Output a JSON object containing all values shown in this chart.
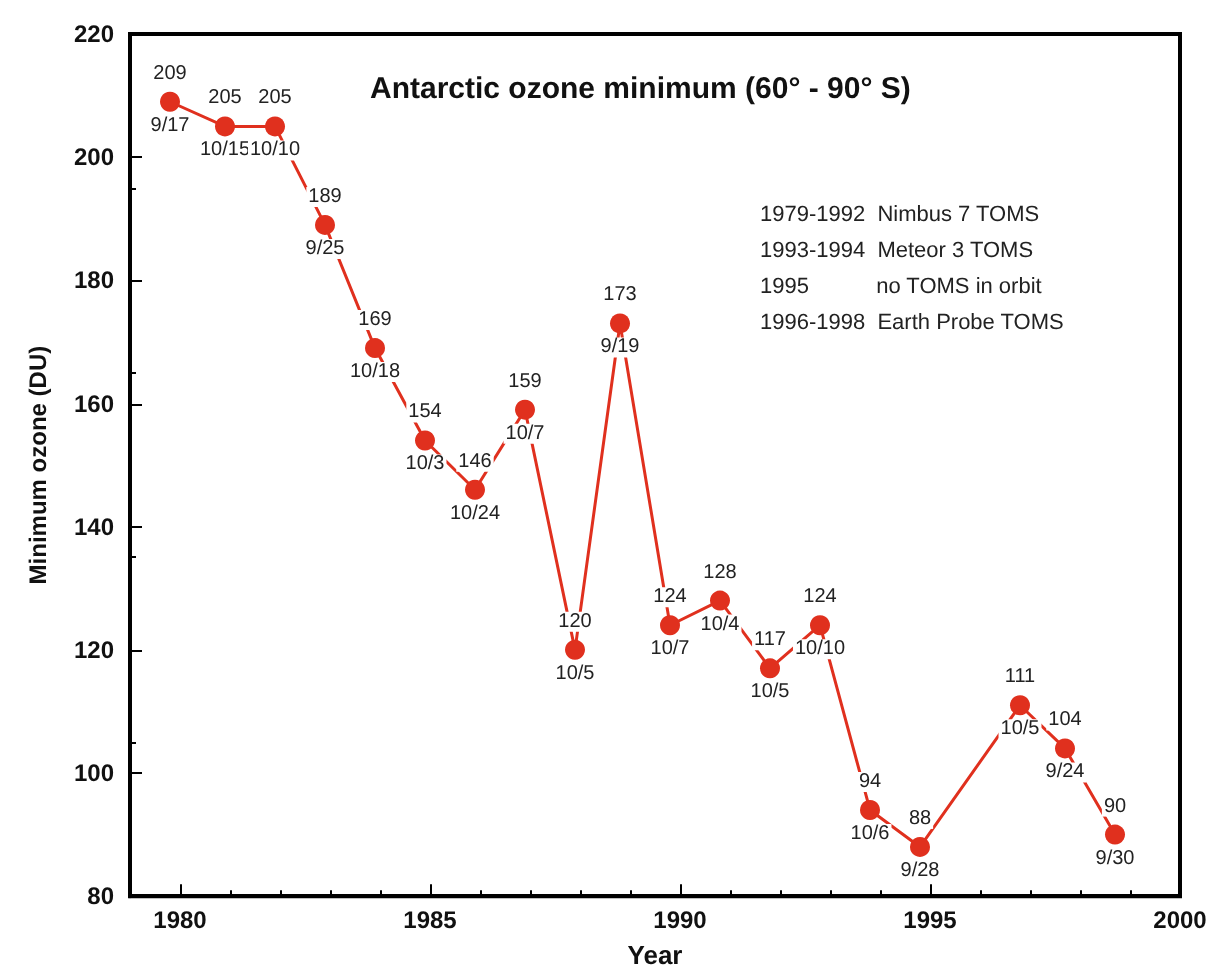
{
  "chart_data": {
    "type": "line",
    "title": "Antarctic ozone minimum (60° - 90° S)",
    "xlabel": "Year",
    "ylabel": "Minimum ozone (DU)",
    "x": [
      1979.8,
      1980.9,
      1981.9,
      1982.9,
      1983.9,
      1984.9,
      1985.9,
      1986.9,
      1987.9,
      1988.8,
      1989.8,
      1990.8,
      1991.8,
      1992.8,
      1993.8,
      1994.8,
      1996.8,
      1997.7,
      1998.7
    ],
    "series": [
      {
        "color": "#e0301e",
        "values": [
          209,
          205,
          205,
          189,
          169,
          154,
          146,
          159,
          120,
          173,
          124,
          128,
          117,
          124,
          94,
          88,
          111,
          104,
          90
        ]
      }
    ],
    "data_labels": true,
    "marker": "circle",
    "line_style": "solid",
    "grid": false,
    "xlim": [
      1979,
      2000
    ],
    "xticks": [
      1980,
      1985,
      1990,
      1995,
      2000
    ],
    "ylim": [
      80,
      220
    ],
    "yticks": [
      80,
      100,
      120,
      140,
      160,
      180,
      200,
      220
    ],
    "annotations": [
      "1979-1992  Nimbus 7 TOMS",
      "1993-1994  Meteor 3 TOMS",
      "1995           no TOMS in orbit",
      "1996-1998  Earth Probe TOMS",
      {
        "text": "9/17",
        "x": 1979.8,
        "y": 209
      },
      {
        "text": "10/15",
        "x": 1980.9,
        "y": 205
      },
      {
        "text": "10/10",
        "x": 1981.9,
        "y": 205
      },
      {
        "text": "9/25",
        "x": 1982.9,
        "y": 189
      },
      {
        "text": "10/18",
        "x": 1983.9,
        "y": 169
      },
      {
        "text": "10/3",
        "x": 1984.9,
        "y": 154
      },
      {
        "text": "10/24",
        "x": 1985.9,
        "y": 146
      },
      {
        "text": "10/7",
        "x": 1986.9,
        "y": 159
      },
      {
        "text": "10/5",
        "x": 1987.9,
        "y": 120
      },
      {
        "text": "9/19",
        "x": 1988.8,
        "y": 173
      },
      {
        "text": "10/7",
        "x": 1989.8,
        "y": 124
      },
      {
        "text": "10/4",
        "x": 1990.8,
        "y": 128
      },
      {
        "text": "10/5",
        "x": 1991.8,
        "y": 117
      },
      {
        "text": "10/10",
        "x": 1992.8,
        "y": 124
      },
      {
        "text": "10/6",
        "x": 1993.8,
        "y": 94
      },
      {
        "text": "9/28",
        "x": 1994.8,
        "y": 88
      },
      {
        "text": "10/5",
        "x": 1996.8,
        "y": 111
      },
      {
        "text": "9/24",
        "x": 1997.7,
        "y": 104
      },
      {
        "text": "9/30",
        "x": 1998.7,
        "y": 90
      }
    ]
  }
}
